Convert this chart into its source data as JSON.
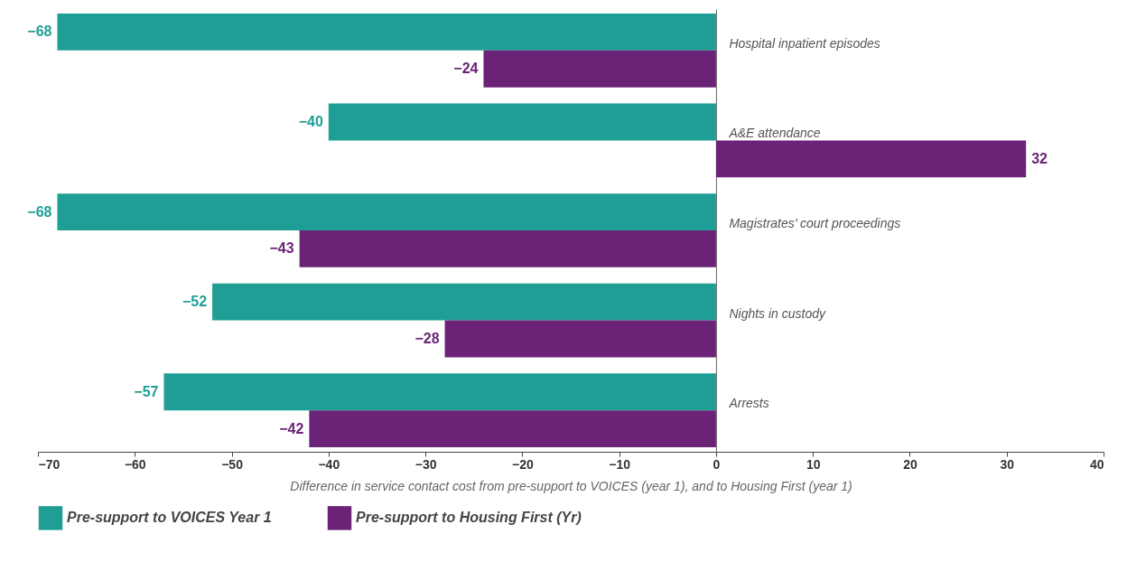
{
  "chart_data": {
    "type": "bar",
    "orientation": "horizontal",
    "xlabel": "Difference in service contact cost from pre-support to VOICES (year 1), and to Housing First (year 1)",
    "categories": [
      "Hospital inpatient episodes",
      "A&E attendance",
      "Magistrates’ court proceedings",
      "Nights in custody",
      "Arrests"
    ],
    "series": [
      {
        "name": "Pre-support to VOICES Year 1",
        "color": "#1f9e96",
        "values": [
          -68,
          -40,
          -68,
          -52,
          -57
        ]
      },
      {
        "name": "Pre-support to Housing First (Yr)",
        "color": "#6a2377",
        "values": [
          -24,
          32,
          -43,
          -28,
          -42
        ]
      }
    ],
    "xlim": [
      -70,
      40
    ],
    "xticks": [
      -70,
      -60,
      -50,
      -40,
      -30,
      -20,
      -10,
      0,
      10,
      20,
      30,
      40
    ],
    "data_labels": true,
    "grid": false,
    "legend": "bottom"
  }
}
